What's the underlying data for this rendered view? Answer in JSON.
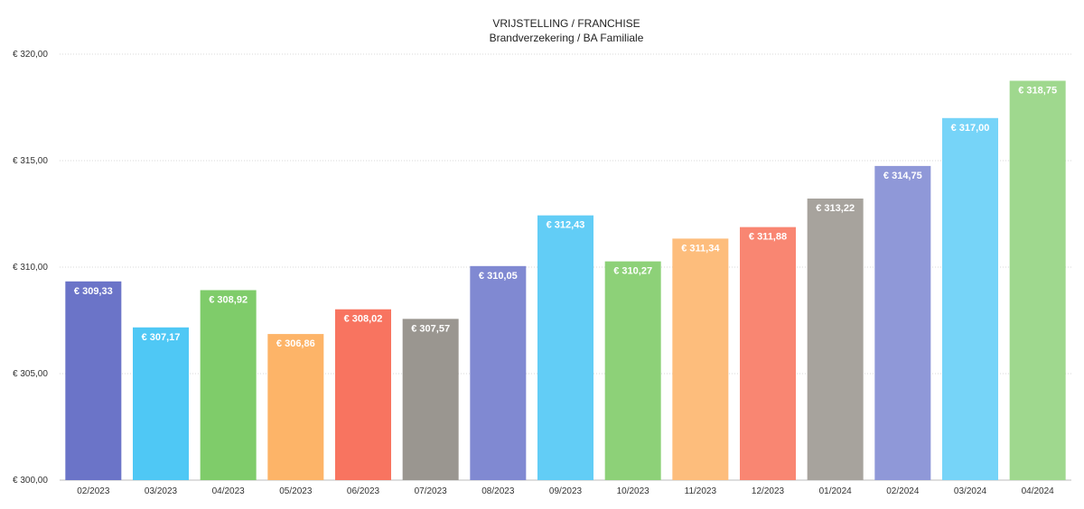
{
  "chart_data": {
    "type": "bar",
    "title": "VRIJSTELLING / FRANCHISE",
    "subtitle": "Brandverzekering / BA Familiale",
    "categories": [
      "02/2023",
      "03/2023",
      "04/2023",
      "05/2023",
      "06/2023",
      "07/2023",
      "08/2023",
      "09/2023",
      "10/2023",
      "11/2023",
      "12/2023",
      "01/2024",
      "02/2024",
      "03/2024",
      "04/2024"
    ],
    "values": [
      309.33,
      307.17,
      308.92,
      306.86,
      308.02,
      307.57,
      310.05,
      312.43,
      310.27,
      311.34,
      311.88,
      313.22,
      314.75,
      317.0,
      318.75
    ],
    "data_labels": [
      "€ 309,33",
      "€ 307,17",
      "€ 308,92",
      "€ 306,86",
      "€ 308,02",
      "€ 307,57",
      "€ 310,05",
      "€ 312,43",
      "€ 310,27",
      "€ 311,34",
      "€ 311,88",
      "€ 313,22",
      "€ 314,75",
      "€ 317,00",
      "€ 318,75"
    ],
    "colors": [
      "#6b74c8",
      "#4fc8f5",
      "#7fcc6a",
      "#fdb468",
      "#f87460",
      "#9a9690",
      "#8089d2",
      "#62cdf6",
      "#8dd178",
      "#fdbd7c",
      "#f98672",
      "#a7a39d",
      "#8f98d8",
      "#76d4f8",
      "#9fd88e"
    ],
    "ylim": [
      300,
      320
    ],
    "ytick_values": [
      300,
      305,
      310,
      315,
      320
    ],
    "ytick_labels": [
      "€ 300,00",
      "€ 305,00",
      "€ 310,00",
      "€ 315,00",
      "€ 320,00"
    ],
    "grid": true,
    "legend": "none"
  }
}
